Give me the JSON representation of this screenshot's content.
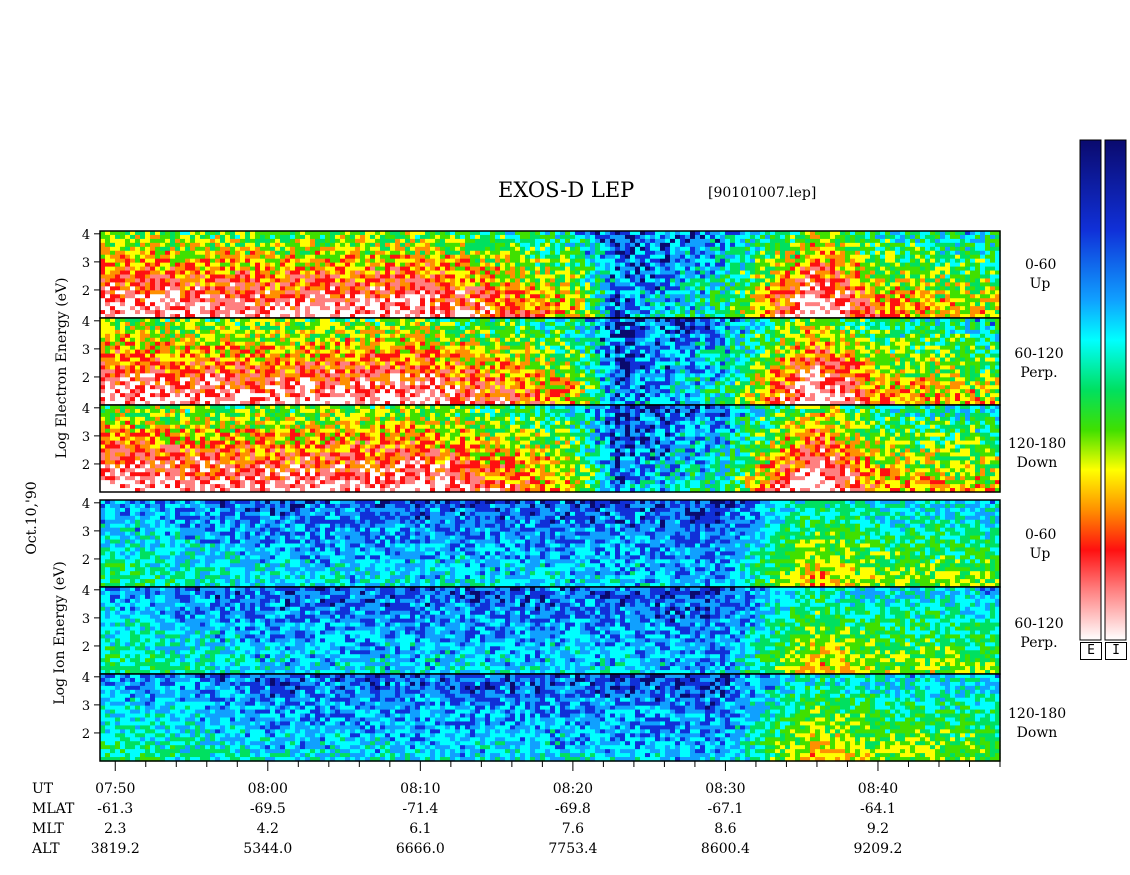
{
  "title": "EXOS-D LEP",
  "file_label": "[90101007.lep]",
  "date_label": "Oct.10,'90",
  "electron_axis_label": "Log   Electron   Energy   (eV)",
  "ion_axis_label": "Log    Ion    Energy   (eV)",
  "colorbar_tags": [
    "E",
    "I"
  ],
  "panels": [
    {
      "species": "electron",
      "angle": "0-60",
      "direction": "Up"
    },
    {
      "species": "electron",
      "angle": "60-120",
      "direction": "Perp."
    },
    {
      "species": "electron",
      "angle": "120-180",
      "direction": "Down"
    },
    {
      "species": "ion",
      "angle": "0-60",
      "direction": "Up"
    },
    {
      "species": "ion",
      "angle": "60-120",
      "direction": "Perp."
    },
    {
      "species": "ion",
      "angle": "120-180",
      "direction": "Down"
    }
  ],
  "ephemeris": {
    "row_labels": [
      "UT",
      "MLAT",
      "MLT",
      "ALT"
    ],
    "columns": [
      {
        "UT": "07:50",
        "MLAT": "-61.3",
        "MLT": "2.3",
        "ALT": "3819.2"
      },
      {
        "UT": "08:00",
        "MLAT": "-69.5",
        "MLT": "4.2",
        "ALT": "5344.0"
      },
      {
        "UT": "08:10",
        "MLAT": "-71.4",
        "MLT": "6.1",
        "ALT": "6666.0"
      },
      {
        "UT": "08:20",
        "MLAT": "-69.8",
        "MLT": "7.6",
        "ALT": "7753.4"
      },
      {
        "UT": "08:30",
        "MLAT": "-67.1",
        "MLT": "8.6",
        "ALT": "8600.4"
      },
      {
        "UT": "08:40",
        "MLAT": "-64.1",
        "MLT": "9.2",
        "ALT": "9209.2"
      }
    ]
  },
  "colors": {
    "scale_low": "#1a1a8c",
    "scale_mid": "#00e040",
    "scale_high": "#ff2020",
    "scale_max": "#ffffff"
  },
  "chart_data": {
    "type": "heatmap",
    "title": "EXOS-D LEP",
    "xlabel": "UT",
    "x_ticks": [
      "07:50",
      "08:00",
      "08:10",
      "08:20",
      "08:30",
      "08:40"
    ],
    "x_range_minutes": [
      "07:49",
      "08:48"
    ],
    "ylabel": "Log Energy (eV)",
    "y_ticks": [
      2,
      3,
      4
    ],
    "ylim": [
      1,
      4.1
    ],
    "colorbar": "dark blue (low flux) to cyan, green, yellow, orange, red, pink, white (high flux)",
    "electron_activity_profile": [
      {
        "ut": "07:50",
        "level": 0.9
      },
      {
        "ut": "08:00",
        "level": 0.85
      },
      {
        "ut": "08:10",
        "level": 0.9
      },
      {
        "ut": "08:20",
        "level": 0.6
      },
      {
        "ut": "08:23",
        "level": 0.15
      },
      {
        "ut": "08:30",
        "level": 0.35
      },
      {
        "ut": "08:36",
        "level": 1.0
      },
      {
        "ut": "08:40",
        "level": 0.65
      },
      {
        "ut": "08:48",
        "level": 0.55
      }
    ],
    "ion_activity_profile": [
      {
        "ut": "07:50",
        "level": 0.45
      },
      {
        "ut": "08:00",
        "level": 0.3
      },
      {
        "ut": "08:10",
        "level": 0.3
      },
      {
        "ut": "08:20",
        "level": 0.3
      },
      {
        "ut": "08:30",
        "level": 0.25
      },
      {
        "ut": "08:36",
        "level": 0.75
      },
      {
        "ut": "08:40",
        "level": 0.6
      },
      {
        "ut": "08:48",
        "level": 0.55
      }
    ]
  }
}
